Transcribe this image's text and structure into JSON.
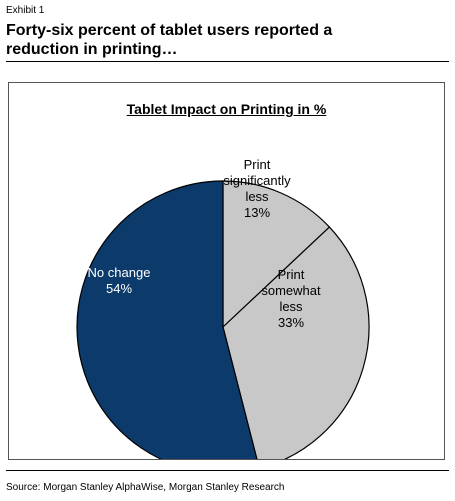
{
  "exhibit": "Exhibit 1",
  "headline_lines": [
    "Forty-six percent of tablet users reported a",
    "reduction in printing…"
  ],
  "source": "Source: Morgan Stanley AlphaWise, Morgan Stanley Research",
  "chart_data": {
    "type": "pie",
    "title": "Tablet Impact on Printing in %",
    "slices": [
      {
        "label_lines": [
          "Print",
          "significantly",
          "less"
        ],
        "value": 13,
        "value_label": "13%",
        "color": "#c8c8c8",
        "text_color": "#000000"
      },
      {
        "label_lines": [
          "Print",
          "somewhat",
          "less"
        ],
        "value": 33,
        "value_label": "33%",
        "color": "#c8c8c8",
        "text_color": "#000000"
      },
      {
        "label_lines": [
          "No change"
        ],
        "value": 54,
        "value_label": "54%",
        "color": "#0b3a6b",
        "text_color": "#ffffff"
      }
    ],
    "start": "12 o'clock",
    "direction": "clockwise"
  }
}
